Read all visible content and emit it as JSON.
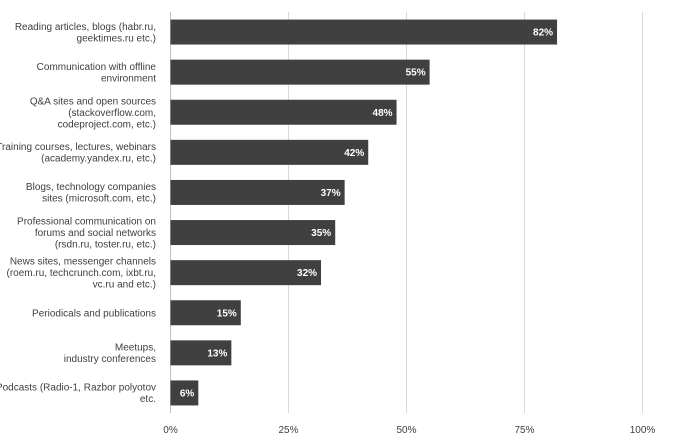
{
  "chart_data": {
    "type": "bar",
    "orientation": "horizontal",
    "title": "",
    "xlabel": "",
    "ylabel": "",
    "categories": [
      [
        "Reading articles, blogs (habr.ru,",
        "geektimes.ru etc.)"
      ],
      [
        "Communication with offline",
        "environment"
      ],
      [
        "Q&A sites and open sources",
        "(stackoverflow.com,",
        "codeproject.com, etc.)"
      ],
      [
        "Training courses, lectures, webinars",
        "(academy.yandex.ru, etc.)"
      ],
      [
        "Blogs, technology companies",
        "sites (microsoft.com, etc.)"
      ],
      [
        "Professional communication on",
        "forums and social networks",
        "(rsdn.ru, toster.ru, etc.)"
      ],
      [
        "News sites, messenger channels",
        "(roem.ru, techcrunch.com, ixbt.ru,",
        "vc.ru and etc.)"
      ],
      [
        "Periodicals and publications"
      ],
      [
        "Meetups,",
        "industry conferences"
      ],
      [
        "Podcasts (Radio-1, Razbor polyotov",
        "etc."
      ]
    ],
    "values": [
      82,
      55,
      48,
      42,
      37,
      35,
      32,
      15,
      13,
      6
    ],
    "value_labels": [
      "82%",
      "55%",
      "48%",
      "42%",
      "37%",
      "35%",
      "32%",
      "15%",
      "13%",
      "6%"
    ],
    "xlim": [
      0,
      100
    ],
    "x_ticks": [
      0,
      25,
      50,
      75,
      100
    ],
    "x_tick_labels": [
      "0%",
      "25%",
      "50%",
      "75%",
      "100%"
    ],
    "grid": "vertical",
    "legend": "none",
    "bar_color": "#404040",
    "grid_color": "#d9d9d9",
    "label_color": "#404040"
  }
}
